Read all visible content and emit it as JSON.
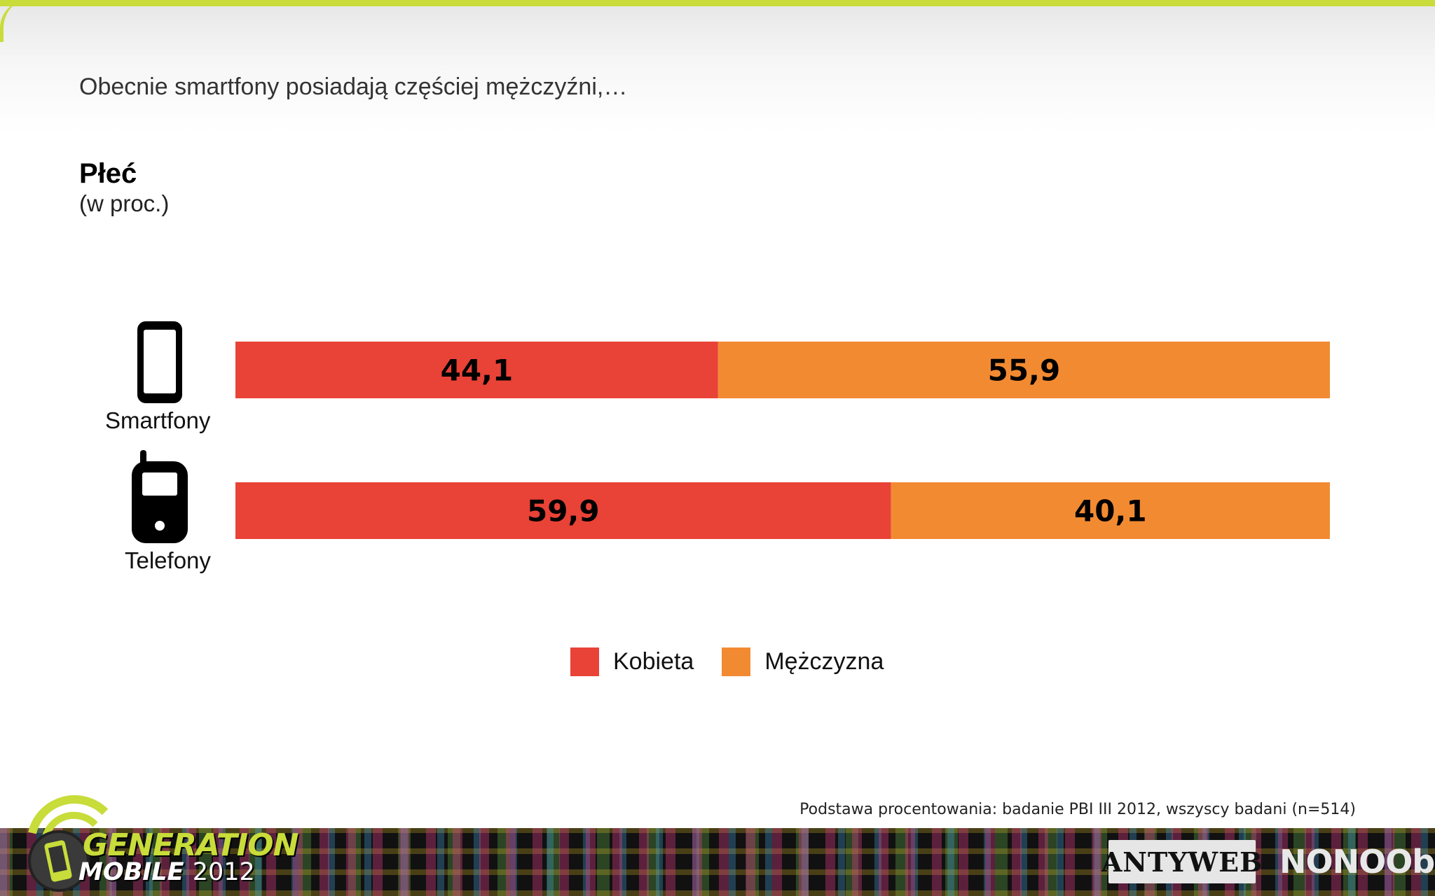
{
  "headline": "Obecnie smartfony posiadają częściej mężczyźni,…",
  "chart_data": {
    "type": "bar",
    "stacked": true,
    "orientation": "horizontal",
    "title": "Płeć",
    "subtitle": "(w proc.)",
    "categories": [
      "Smartfony",
      "Telefony"
    ],
    "category_icons": [
      "smartphone-icon",
      "cellphone-icon"
    ],
    "series": [
      {
        "name": "Kobieta",
        "color": "#e94236",
        "values": [
          44.1,
          59.9
        ],
        "labels": [
          "44,1",
          "59,9"
        ]
      },
      {
        "name": "Mężczyzna",
        "color": "#f28a32",
        "values": [
          55.9,
          40.1
        ],
        "labels": [
          "55,9",
          "40,1"
        ]
      }
    ],
    "xlim": [
      0,
      100
    ],
    "grid": false,
    "legend_position": "bottom"
  },
  "footnote": "Podstawa procentowania: badanie PBI III 2012, wszyscy badani (n=514)",
  "footer": {
    "logo_line1": "GENERATION",
    "logo_line2": "MOBILE",
    "logo_year": "2012",
    "logo_antyweb": "ANTYWEB",
    "logo_nonoobs": "NONOObS",
    "accent_color": "#c9dc3a"
  }
}
